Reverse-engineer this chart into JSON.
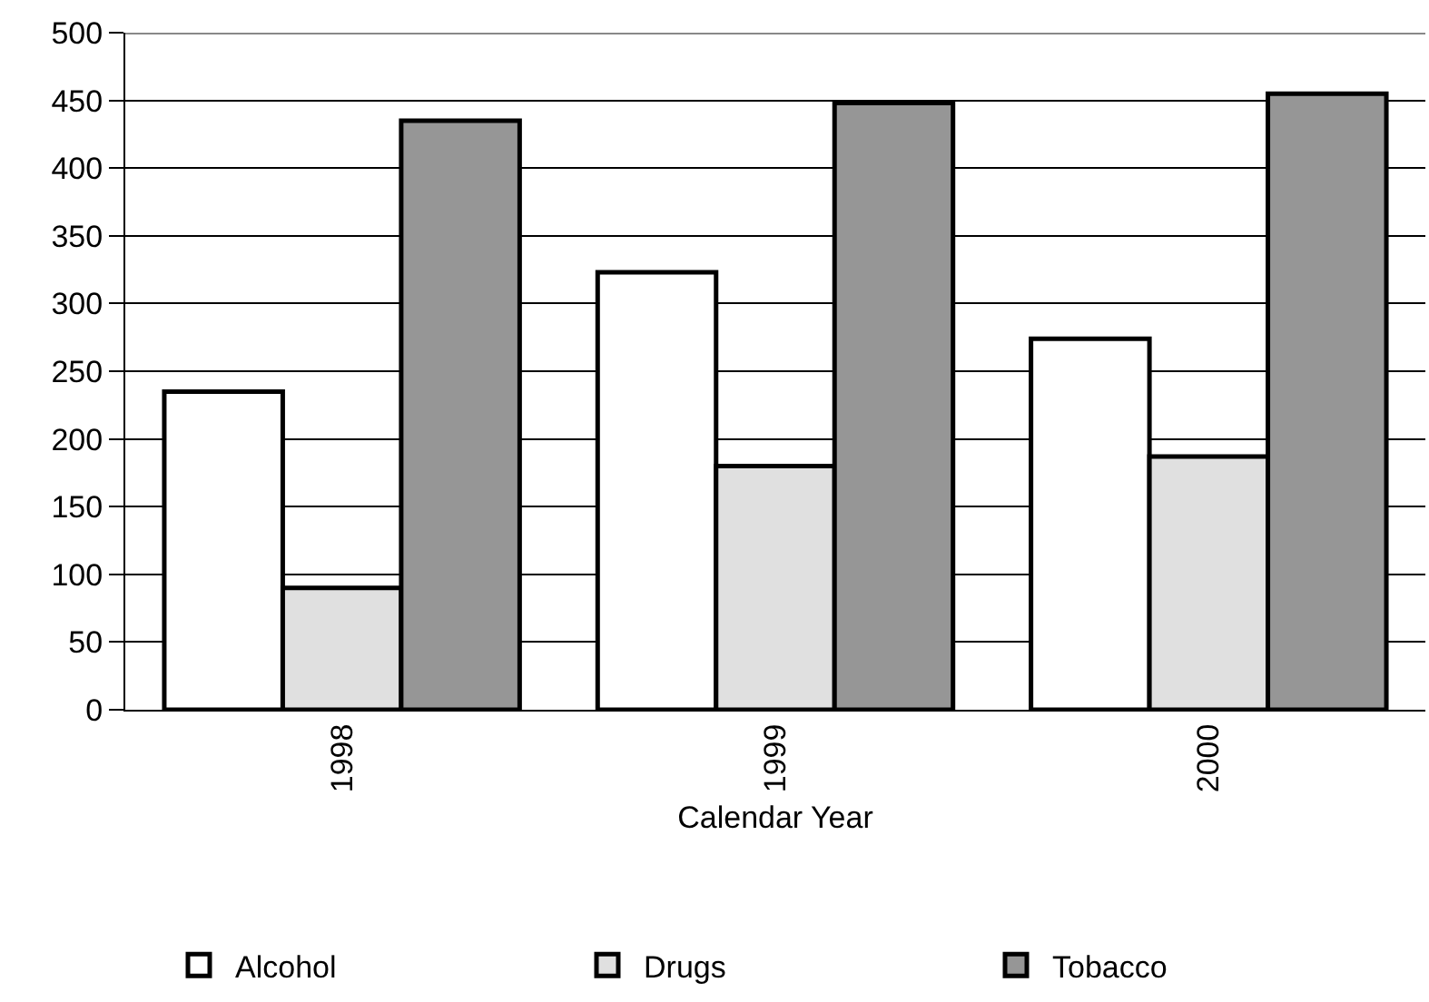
{
  "chart_data": {
    "type": "bar",
    "xlabel": "Calendar Year",
    "categories": [
      "1998",
      "1999",
      "2000"
    ],
    "series": [
      {
        "name": "Alcohol",
        "color": "#ffffff",
        "values": [
          235,
          323,
          274
        ]
      },
      {
        "name": "Drugs",
        "color": "#e0e0e0",
        "values": [
          90,
          180,
          187
        ]
      },
      {
        "name": "Tobacco",
        "color": "#969696",
        "values": [
          435,
          448,
          455
        ]
      }
    ],
    "ylim": [
      0,
      500
    ],
    "yticks": [
      0,
      50,
      100,
      150,
      200,
      250,
      300,
      350,
      400,
      450,
      500
    ],
    "grid": "y",
    "legend": "bottom"
  }
}
